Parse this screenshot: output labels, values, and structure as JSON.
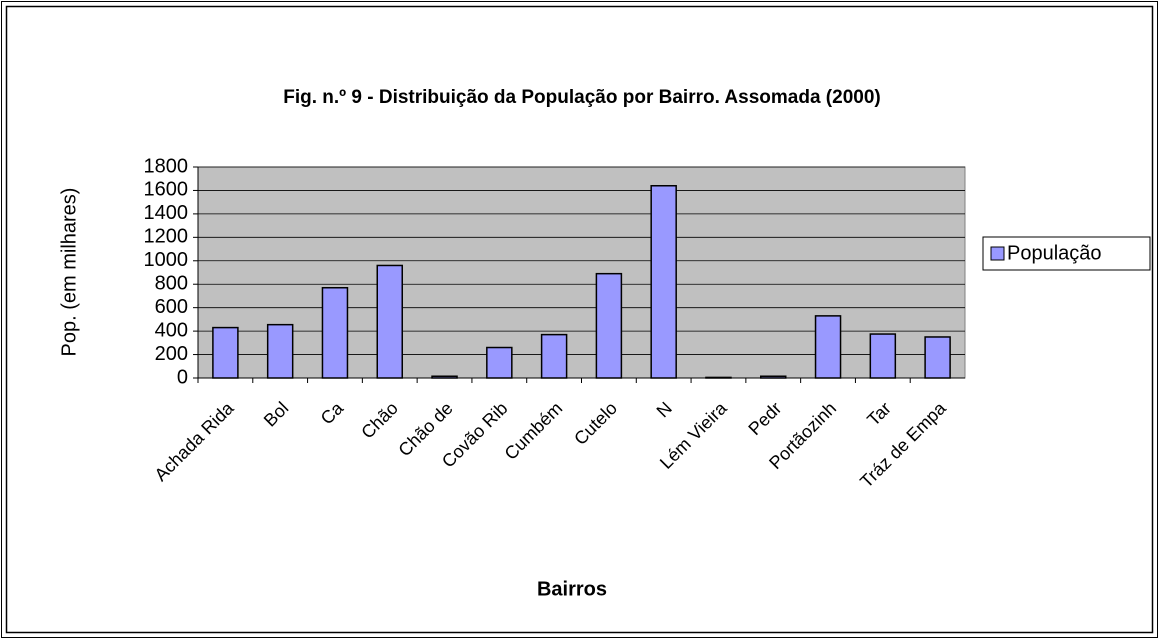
{
  "chart_data": {
    "type": "bar",
    "title": "Fig. n.º 9 - Distribuição da População por Bairro. Assomada (2000)",
    "x_label": "Bairros",
    "y_label": "Pop. (em milhares)",
    "categories": [
      "Achada Rida",
      "Bol",
      "Ca",
      "Chão",
      "Chão de",
      "Covão Rib",
      "Cumbém",
      "Cutelo",
      "N",
      "Lém Vieira",
      "Pedr",
      "Portãozinh",
      "Tar",
      "Tráz de Empa"
    ],
    "series": [
      {
        "name": "População",
        "color": "#9999ff",
        "values": [
          430,
          455,
          770,
          960,
          15,
          260,
          370,
          890,
          1640,
          5,
          15,
          530,
          375,
          350
        ]
      }
    ],
    "ylim": [
      0,
      1800
    ],
    "yticks": [
      0,
      200,
      400,
      600,
      800,
      1000,
      1200,
      1400,
      1600,
      1800
    ],
    "grid": true,
    "legend": "right"
  }
}
